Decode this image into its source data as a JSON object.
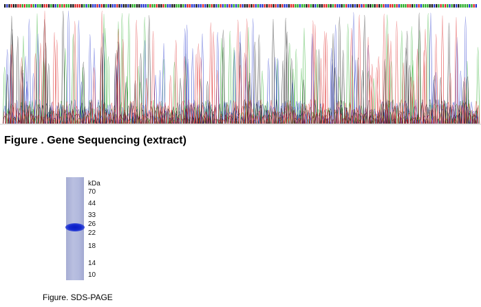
{
  "figure1": {
    "caption": "Figure . Gene Sequencing (extract)",
    "trace_colors": {
      "A": "#22aa22",
      "C": "#2233cc",
      "G": "#111111",
      "T": "#dd2222"
    }
  },
  "figure2": {
    "caption": "Figure. SDS-PAGE",
    "ladder_unit": "kDa",
    "ladder_marks": [
      "70",
      "44",
      "33",
      "26",
      "22",
      "18",
      "14",
      "10"
    ],
    "band_kda": 24
  }
}
